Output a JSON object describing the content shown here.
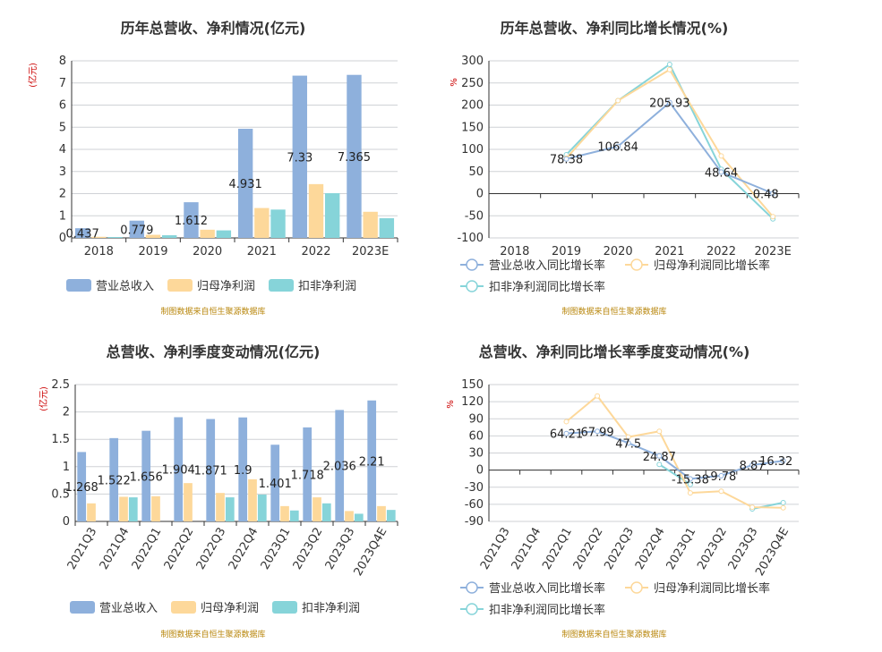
{
  "colors": {
    "revenue": "#8eb0dc",
    "parent": "#fdd89a",
    "deducted": "#86d4d9",
    "axis": "#6e7079",
    "grid": "#cfd2d6",
    "title": "#333333",
    "unit": "#cc0000",
    "source": "#b8860b"
  },
  "legend_bar": [
    "营业总收入",
    "归母净利润",
    "扣非净利润"
  ],
  "legend_line": [
    "营业总收入同比增长率",
    "归母净利润同比增长率",
    "扣非净利润同比增长率"
  ],
  "source_note": "制图数据来自恒生聚源数据库",
  "chart_data": [
    {
      "id": "annual_amount",
      "type": "bar",
      "title": "历年总营收、净利情况(亿元)",
      "ylabel": "(亿元)",
      "categories": [
        "2018",
        "2019",
        "2020",
        "2021",
        "2022",
        "2023E"
      ],
      "ylim": [
        0,
        8
      ],
      "yticks": [
        0,
        1,
        2,
        3,
        4,
        5,
        6,
        7,
        8
      ],
      "series": [
        {
          "name": "营业总收入",
          "values": [
            0.437,
            0.779,
            1.612,
            4.931,
            7.33,
            7.365
          ],
          "labels": [
            "0.437",
            "0.779",
            "1.612",
            "4.931",
            "7.33",
            "7.365"
          ]
        },
        {
          "name": "归母净利润",
          "values": [
            0.05,
            0.14,
            0.37,
            1.35,
            2.43,
            1.18
          ]
        },
        {
          "name": "扣非净利润",
          "values": [
            0.04,
            0.12,
            0.34,
            1.28,
            2.02,
            0.89
          ]
        }
      ],
      "grid": true,
      "legend": "bottom"
    },
    {
      "id": "annual_growth",
      "type": "line",
      "title": "历年总营收、净利同比增长情况(%)",
      "ylabel": "%",
      "categories": [
        "2018",
        "2019",
        "2020",
        "2021",
        "2022",
        "2023E"
      ],
      "ylim": [
        -100,
        300
      ],
      "yticks": [
        -100,
        -50,
        0,
        50,
        100,
        150,
        200,
        250,
        300
      ],
      "series": [
        {
          "name": "营业总收入同比增长率",
          "values": [
            null,
            78.38,
            106.84,
            205.93,
            48.64,
            0.48
          ],
          "labels": [
            "",
            "78.38",
            "106.84",
            "205.93",
            "48.64",
            "0.48"
          ]
        },
        {
          "name": "归母净利润同比增长率",
          "values": [
            null,
            80,
            210,
            280,
            85,
            -52
          ]
        },
        {
          "name": "扣非净利润同比增长率",
          "values": [
            null,
            88,
            210,
            292,
            55,
            -57
          ]
        }
      ],
      "grid": true,
      "legend": "bottom"
    },
    {
      "id": "quarter_amount",
      "type": "bar",
      "title": "总营收、净利季度变动情况(亿元)",
      "ylabel": "(亿元)",
      "categories": [
        "2021Q3",
        "2021Q4",
        "2022Q1",
        "2022Q2",
        "2022Q3",
        "2022Q4",
        "2023Q1",
        "2023Q2",
        "2023Q3",
        "2023Q4E"
      ],
      "ylim": [
        0,
        2.5
      ],
      "yticks": [
        0,
        0.5,
        1,
        1.5,
        2,
        2.5
      ],
      "series": [
        {
          "name": "营业总收入",
          "values": [
            1.268,
            1.522,
            1.656,
            1.904,
            1.871,
            1.9,
            1.401,
            1.718,
            2.036,
            2.21
          ],
          "labels": [
            "1.268",
            "1.522",
            "1.656",
            "1.904",
            "1.871",
            "1.9",
            "1.401",
            "1.718",
            "2.036",
            "2.21"
          ]
        },
        {
          "name": "归母净利润",
          "values": [
            0.33,
            0.45,
            0.46,
            0.7,
            0.52,
            0.77,
            0.28,
            0.44,
            0.19,
            0.28
          ]
        },
        {
          "name": "扣非净利润",
          "values": [
            null,
            0.44,
            null,
            null,
            0.44,
            0.49,
            0.2,
            0.33,
            0.14,
            0.21
          ]
        }
      ],
      "grid": true,
      "legend": "bottom"
    },
    {
      "id": "quarter_growth",
      "type": "line",
      "title": "总营收、净利同比增长率季度变动情况(%)",
      "ylabel": "%",
      "categories": [
        "2021Q3",
        "2021Q4",
        "2022Q1",
        "2022Q2",
        "2022Q3",
        "2022Q4",
        "2023Q1",
        "2023Q2",
        "2023Q3",
        "2023Q4E"
      ],
      "ylim": [
        -90,
        150
      ],
      "yticks": [
        -90,
        -60,
        -30,
        0,
        30,
        60,
        90,
        120,
        150
      ],
      "series": [
        {
          "name": "营业总收入同比增长率",
          "values": [
            null,
            null,
            64.21,
            67.99,
            47.5,
            24.87,
            -15.38,
            -9.78,
            8.87,
            16.32
          ],
          "labels": [
            "",
            "",
            "64.21",
            "67.99",
            "47.5",
            "24.87",
            "-15.38",
            "-9.78",
            "8.87",
            "16.32"
          ]
        },
        {
          "name": "归母净利润同比增长率",
          "values": [
            null,
            null,
            85,
            130,
            58,
            68,
            -40,
            -37,
            -65,
            -66
          ]
        },
        {
          "name": "扣非净利润同比增长率",
          "values": [
            null,
            null,
            null,
            null,
            null,
            10,
            -25,
            null,
            -68,
            -57
          ]
        }
      ],
      "grid": true,
      "legend": "bottom"
    }
  ]
}
